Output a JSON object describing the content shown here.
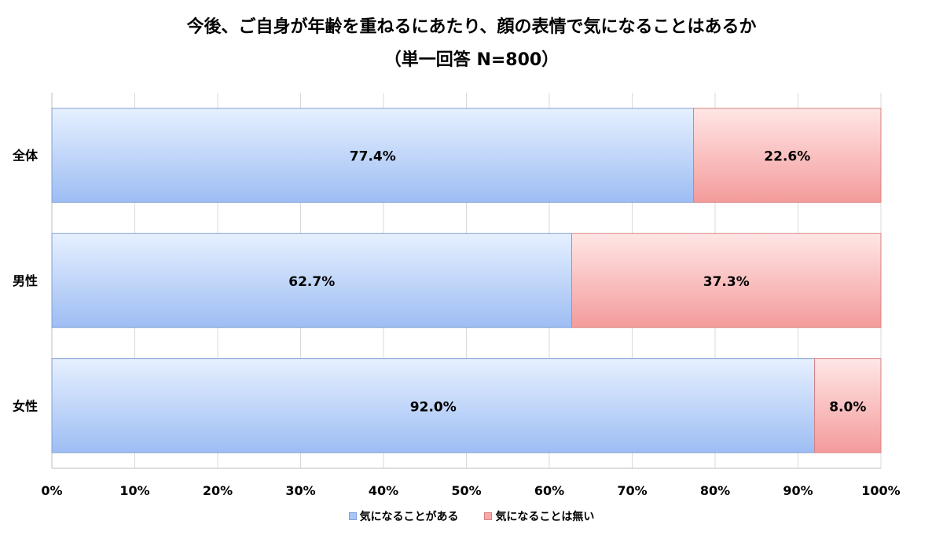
{
  "title_line1": "今後、ご自身が年齢を重ねるにあたり、顔の表情で気になることはあるか",
  "title_line2": "（単一回答 N=800）",
  "chart_data": {
    "type": "bar",
    "orientation": "horizontal",
    "stacked": true,
    "percent_stacked": true,
    "categories": [
      "全体",
      "男性",
      "女性"
    ],
    "series": [
      {
        "name": "気になることがある",
        "values": [
          77.4,
          62.7,
          92.0
        ],
        "labels": [
          "77.4%",
          "62.7%",
          "92.0%"
        ],
        "color": "#a9c6f7"
      },
      {
        "name": "気になることは無い",
        "values": [
          22.6,
          37.3,
          8.0
        ],
        "labels": [
          "22.6%",
          "37.3%",
          "8.0%"
        ],
        "color": "#f7a9a9"
      }
    ],
    "xlim": [
      0,
      100
    ],
    "xticks": [
      "0%",
      "10%",
      "20%",
      "30%",
      "40%",
      "50%",
      "60%",
      "70%",
      "80%",
      "90%",
      "100%"
    ],
    "grid": true,
    "legend_position": "bottom"
  }
}
